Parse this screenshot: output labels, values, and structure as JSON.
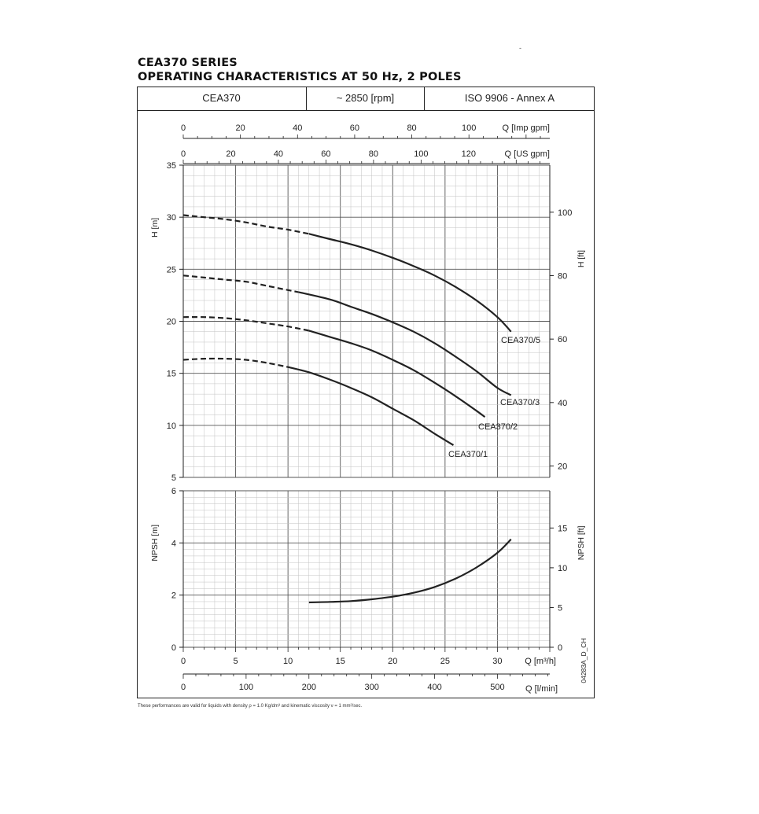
{
  "header": {
    "title_line1": "CEA370 SERIES",
    "title_line2": "OPERATING CHARACTERISTICS AT 50 Hz, 2 POLES",
    "corner_mark": "-",
    "model": "CEA370",
    "speed": "~ 2850 [rpm]",
    "standard": "ISO 9906 - Annex A"
  },
  "chart_data": [
    {
      "type": "line",
      "name_of_panel": "head",
      "ylabel": "H [m]",
      "ylabel_right": "H [ft]",
      "ylim": [
        5,
        35
      ],
      "xlim_m3h": [
        0,
        35
      ],
      "yticks": [
        5,
        10,
        15,
        20,
        25,
        30,
        35
      ],
      "yticks_right": [
        20,
        40,
        60,
        80,
        100
      ],
      "top_axes": [
        {
          "label": "Q [Imp gpm]",
          "ticks": [
            0,
            20,
            40,
            60,
            80,
            100
          ]
        },
        {
          "label": "Q [US gpm]",
          "ticks": [
            0,
            20,
            40,
            60,
            80,
            100,
            120
          ]
        }
      ],
      "series": [
        {
          "name": "CEA370/5",
          "dashed_until_x": 12,
          "x": [
            0,
            2,
            4,
            6,
            8,
            10,
            12,
            14,
            16,
            18,
            20,
            22,
            24,
            26,
            28,
            30,
            31.3
          ],
          "y": [
            30.2,
            30.0,
            29.8,
            29.5,
            29.1,
            28.8,
            28.4,
            27.9,
            27.4,
            26.8,
            26.1,
            25.3,
            24.4,
            23.3,
            22.0,
            20.4,
            19.0
          ]
        },
        {
          "name": "CEA370/3",
          "dashed_until_x": 11,
          "x": [
            0,
            2,
            4,
            6,
            8,
            10,
            11,
            14,
            16,
            18,
            20,
            22,
            24,
            26,
            28,
            30,
            31.3
          ],
          "y": [
            24.4,
            24.2,
            24.0,
            23.8,
            23.4,
            23.0,
            22.8,
            22.1,
            21.4,
            20.7,
            19.9,
            19.0,
            17.9,
            16.6,
            15.2,
            13.6,
            12.9
          ]
        },
        {
          "name": "CEA370/2",
          "dashed_until_x": 12,
          "x": [
            0,
            2,
            4,
            6,
            8,
            10,
            12,
            14,
            16,
            18,
            20,
            22,
            24,
            26,
            28,
            28.8
          ],
          "y": [
            20.4,
            20.4,
            20.3,
            20.1,
            19.8,
            19.5,
            19.1,
            18.5,
            17.9,
            17.2,
            16.3,
            15.3,
            14.1,
            12.8,
            11.4,
            10.8
          ]
        },
        {
          "name": "CEA370/1",
          "dashed_until_x": 10,
          "x": [
            0,
            2,
            4,
            6,
            8,
            10,
            12,
            14,
            16,
            18,
            20,
            22,
            24,
            25.8
          ],
          "y": [
            16.3,
            16.4,
            16.4,
            16.3,
            16.0,
            15.6,
            15.1,
            14.4,
            13.6,
            12.7,
            11.6,
            10.5,
            9.2,
            8.1
          ]
        }
      ]
    },
    {
      "type": "line",
      "name_of_panel": "npsh",
      "ylabel": "NPSH [m]",
      "ylabel_right": "NPSH [ft]",
      "ylim": [
        0,
        6
      ],
      "xlim_m3h": [
        0,
        35
      ],
      "yticks": [
        0,
        2,
        4,
        6
      ],
      "yticks_right": [
        0,
        5,
        10,
        15
      ],
      "bottom_axes": [
        {
          "label": "Q [m³/h]",
          "ticks": [
            0,
            5,
            10,
            15,
            20,
            25,
            30
          ]
        },
        {
          "label": "Q [l/min]",
          "ticks": [
            0,
            100,
            200,
            300,
            400,
            500
          ]
        }
      ],
      "series": [
        {
          "name": "NPSH",
          "x": [
            12,
            14,
            16,
            18,
            20,
            22,
            24,
            26,
            28,
            30,
            31.3
          ],
          "y": [
            1.72,
            1.74,
            1.77,
            1.84,
            1.94,
            2.09,
            2.31,
            2.63,
            3.06,
            3.62,
            4.14
          ]
        }
      ]
    }
  ],
  "drawing_code": "04283A_D_CH",
  "footnote": "These performances are valid for liquids with density ρ = 1.0 Kg/dm³ and kinematic viscosity ν = 1 mm²/sec."
}
